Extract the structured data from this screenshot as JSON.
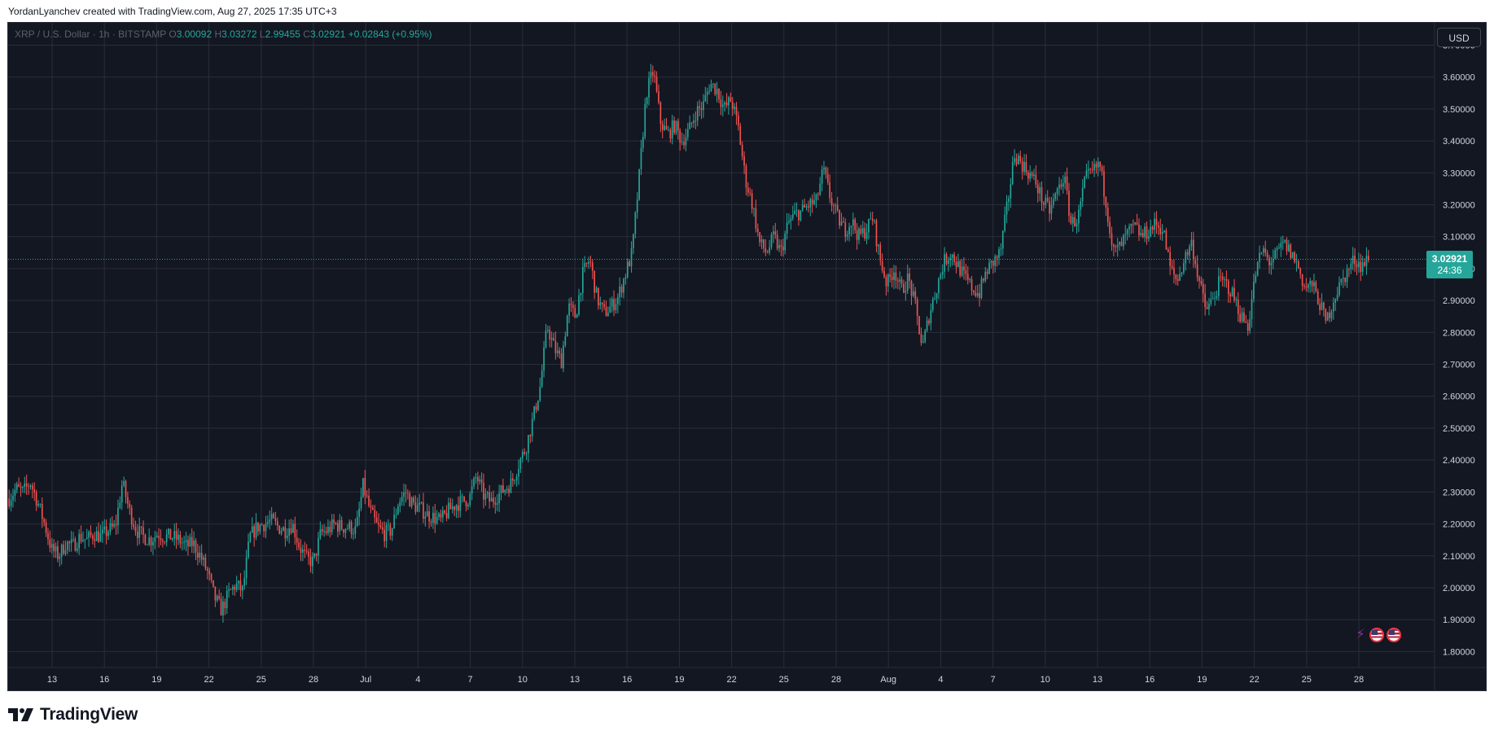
{
  "header": {
    "caption": "YordanLyanchev created with TradingView.com, Aug 27, 2025 17:35 UTC+3"
  },
  "legend": {
    "symbol": "XRP / U.S. Dollar · 1h · BITSTAMP",
    "o_label": "O",
    "o_value": "3.00092",
    "h_label": "H",
    "h_value": "3.03272",
    "l_label": "L",
    "l_value": "2.99455",
    "c_label": "C",
    "c_value": "3.02921",
    "change": "+0.02843 (+0.95%)"
  },
  "currency_button": "USD",
  "last_price": {
    "price": "3.02921",
    "countdown": "24:36"
  },
  "brand": {
    "name": "TradingView"
  },
  "icons": {
    "events": [
      "lightning-event-icon",
      "us-flag-event-icon",
      "us-flag-event-icon"
    ],
    "logo": "tradingview-logo-icon"
  },
  "colors": {
    "background": "#131722",
    "grid": "#2a2e39",
    "up": "#26a69a",
    "down": "#ef5350",
    "axis_text": "#d1d4dc"
  },
  "chart_data": {
    "type": "candlestick",
    "title": "XRP / U.S. Dollar · 1h · BITSTAMP",
    "ylim": [
      1.75,
      3.77
    ],
    "y_ticks": [
      "3.70000",
      "3.60000",
      "3.50000",
      "3.40000",
      "3.30000",
      "3.20000",
      "3.10000",
      "3.00000",
      "2.90000",
      "2.80000",
      "2.70000",
      "2.60000",
      "2.50000",
      "2.40000",
      "2.30000",
      "2.20000",
      "2.10000",
      "2.00000",
      "1.90000",
      "1.80000"
    ],
    "x_ticks": [
      "13",
      "16",
      "19",
      "22",
      "25",
      "28",
      "Jul",
      "4",
      "7",
      "10",
      "13",
      "16",
      "19",
      "22",
      "25",
      "28",
      "Aug",
      "4",
      "7",
      "10",
      "13",
      "16",
      "19",
      "22",
      "25",
      "28"
    ],
    "grid": true,
    "last_price": 3.02921,
    "close_path_note_free": true,
    "closes": [
      2.28,
      2.31,
      2.3,
      2.33,
      2.27,
      2.2,
      2.12,
      2.1,
      2.14,
      2.13,
      2.16,
      2.15,
      2.17,
      2.16,
      2.18,
      2.19,
      2.33,
      2.24,
      2.18,
      2.16,
      2.15,
      2.17,
      2.16,
      2.16,
      2.15,
      2.13,
      2.14,
      2.1,
      2.05,
      1.97,
      1.93,
      1.98,
      2.01,
      1.99,
      2.16,
      2.19,
      2.2,
      2.21,
      2.19,
      2.18,
      2.2,
      2.13,
      2.09,
      2.08,
      2.17,
      2.18,
      2.2,
      2.19,
      2.19,
      2.18,
      2.32,
      2.24,
      2.19,
      2.17,
      2.18,
      2.27,
      2.3,
      2.26,
      2.25,
      2.23,
      2.22,
      2.21,
      2.24,
      2.26,
      2.27,
      2.28,
      2.35,
      2.29,
      2.27,
      2.29,
      2.31,
      2.33,
      2.39,
      2.44,
      2.53,
      2.63,
      2.82,
      2.75,
      2.71,
      2.88,
      2.85,
      2.98,
      3.03,
      2.91,
      2.86,
      2.88,
      2.91,
      2.98,
      3.05,
      3.29,
      3.55,
      3.62,
      3.46,
      3.42,
      3.45,
      3.4,
      3.43,
      3.49,
      3.51,
      3.58,
      3.56,
      3.5,
      3.53,
      3.44,
      3.28,
      3.2,
      3.08,
      3.05,
      3.1,
      3.05,
      3.14,
      3.17,
      3.18,
      3.2,
      3.21,
      3.31,
      3.22,
      3.16,
      3.12,
      3.15,
      3.1,
      3.12,
      3.16,
      3.03,
      2.95,
      3.0,
      2.93,
      2.97,
      2.88,
      2.75,
      2.86,
      2.94,
      3.02,
      3.05,
      3.01,
      2.97,
      2.94,
      2.92,
      2.99,
      3.02,
      3.05,
      3.2,
      3.36,
      3.33,
      3.3,
      3.27,
      3.21,
      3.18,
      3.24,
      3.29,
      3.14,
      3.16,
      3.28,
      3.3,
      3.33,
      3.2,
      3.05,
      3.07,
      3.11,
      3.13,
      3.1,
      3.12,
      3.14,
      3.12,
      3.0,
      2.96,
      3.03,
      3.08,
      2.97,
      2.87,
      2.9,
      2.96,
      2.95,
      2.91,
      2.85,
      2.82,
      2.98,
      3.06,
      3.02,
      3.04,
      3.08,
      3.05,
      3.01,
      2.94,
      2.95,
      2.9,
      2.83,
      2.9,
      2.95,
      2.99,
      3.03,
      3.01,
      3.03
    ]
  }
}
